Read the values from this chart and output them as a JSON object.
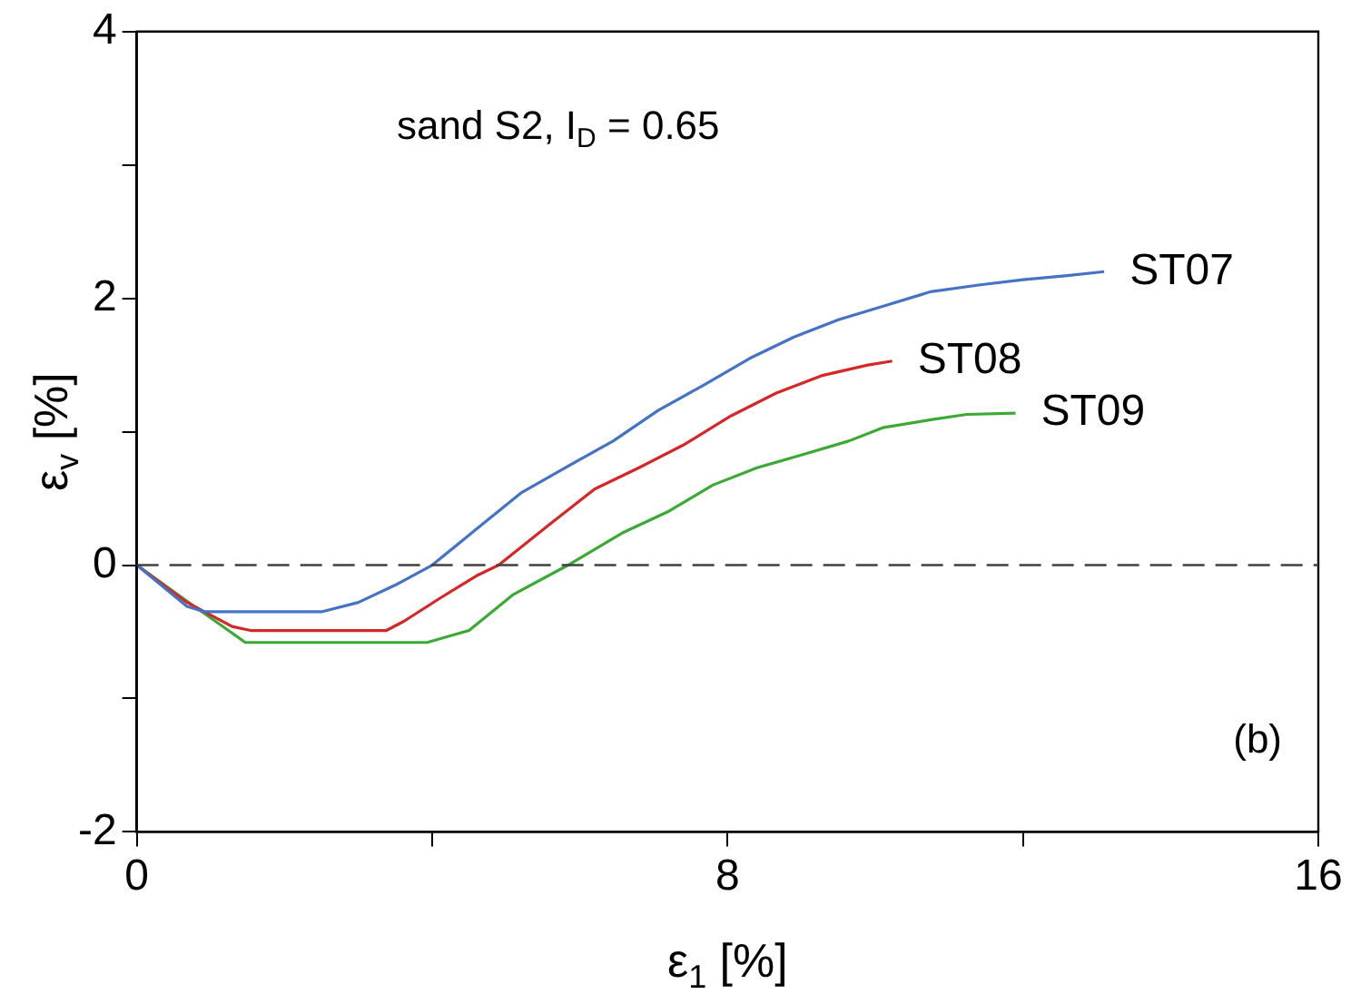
{
  "chart_data": {
    "type": "line",
    "xlabel": "ε$_{1}$ [%]",
    "ylabel": "ε$_{v}$ [%]",
    "annotations": [
      "sand S2, I$_{D}$ = 0.65",
      "(b)"
    ],
    "xlim": [
      0,
      16
    ],
    "xticks": [
      0,
      {
        "value": 4,
        "label": null
      },
      8,
      {
        "value": 12,
        "label": null
      },
      16
    ],
    "ylim": [
      -2,
      4
    ],
    "yticks": [
      -2,
      {
        "value": -1,
        "label": null
      },
      0,
      {
        "value": 1,
        "label": null
      },
      2,
      {
        "value": 3,
        "label": null
      },
      4
    ],
    "grid": false,
    "legend": false,
    "marker": "none",
    "line_style": "solid",
    "ref_lines": [
      {
        "axis": "y",
        "value": 0,
        "color": "#404040",
        "line_style": "dashed"
      }
    ],
    "series": [
      {
        "name": "ST07",
        "color": "#4472c4",
        "x": [
          0,
          0.68,
          0.92,
          2.5,
          3.0,
          3.5,
          4.0,
          4.6,
          5.2,
          5.8,
          6.45,
          7.06,
          7.68,
          8.3,
          8.9,
          9.5,
          10.1,
          10.75,
          11.4,
          12.0,
          12.6,
          13.1
        ],
        "values": [
          0,
          -0.31,
          -0.35,
          -0.35,
          -0.28,
          -0.15,
          0,
          0.27,
          0.54,
          0.73,
          0.93,
          1.16,
          1.35,
          1.55,
          1.71,
          1.84,
          1.94,
          2.05,
          2.1,
          2.14,
          2.17,
          2.2
        ]
      },
      {
        "name": "ST08",
        "color": "#d62728",
        "x": [
          0,
          0.68,
          1.29,
          1.54,
          3.38,
          3.62,
          4.1,
          4.6,
          4.9,
          5.6,
          6.2,
          6.8,
          7.4,
          8.05,
          8.66,
          9.27,
          9.9,
          10.23
        ],
        "values": [
          0,
          -0.28,
          -0.46,
          -0.49,
          -0.49,
          -0.42,
          -0.25,
          -0.08,
          0,
          0.31,
          0.57,
          0.73,
          0.9,
          1.12,
          1.29,
          1.42,
          1.5,
          1.53
        ]
      },
      {
        "name": "ST09",
        "color": "#3aaa35",
        "x": [
          0,
          0.68,
          1.47,
          3.93,
          4.5,
          5.1,
          5.84,
          6.57,
          7.19,
          7.8,
          8.4,
          9.03,
          9.64,
          10.1,
          10.75,
          11.24,
          11.9
        ],
        "values": [
          0,
          -0.27,
          -0.58,
          -0.58,
          -0.49,
          -0.22,
          0,
          0.24,
          0.4,
          0.6,
          0.73,
          0.83,
          0.93,
          1.03,
          1.09,
          1.13,
          1.14
        ]
      }
    ]
  }
}
